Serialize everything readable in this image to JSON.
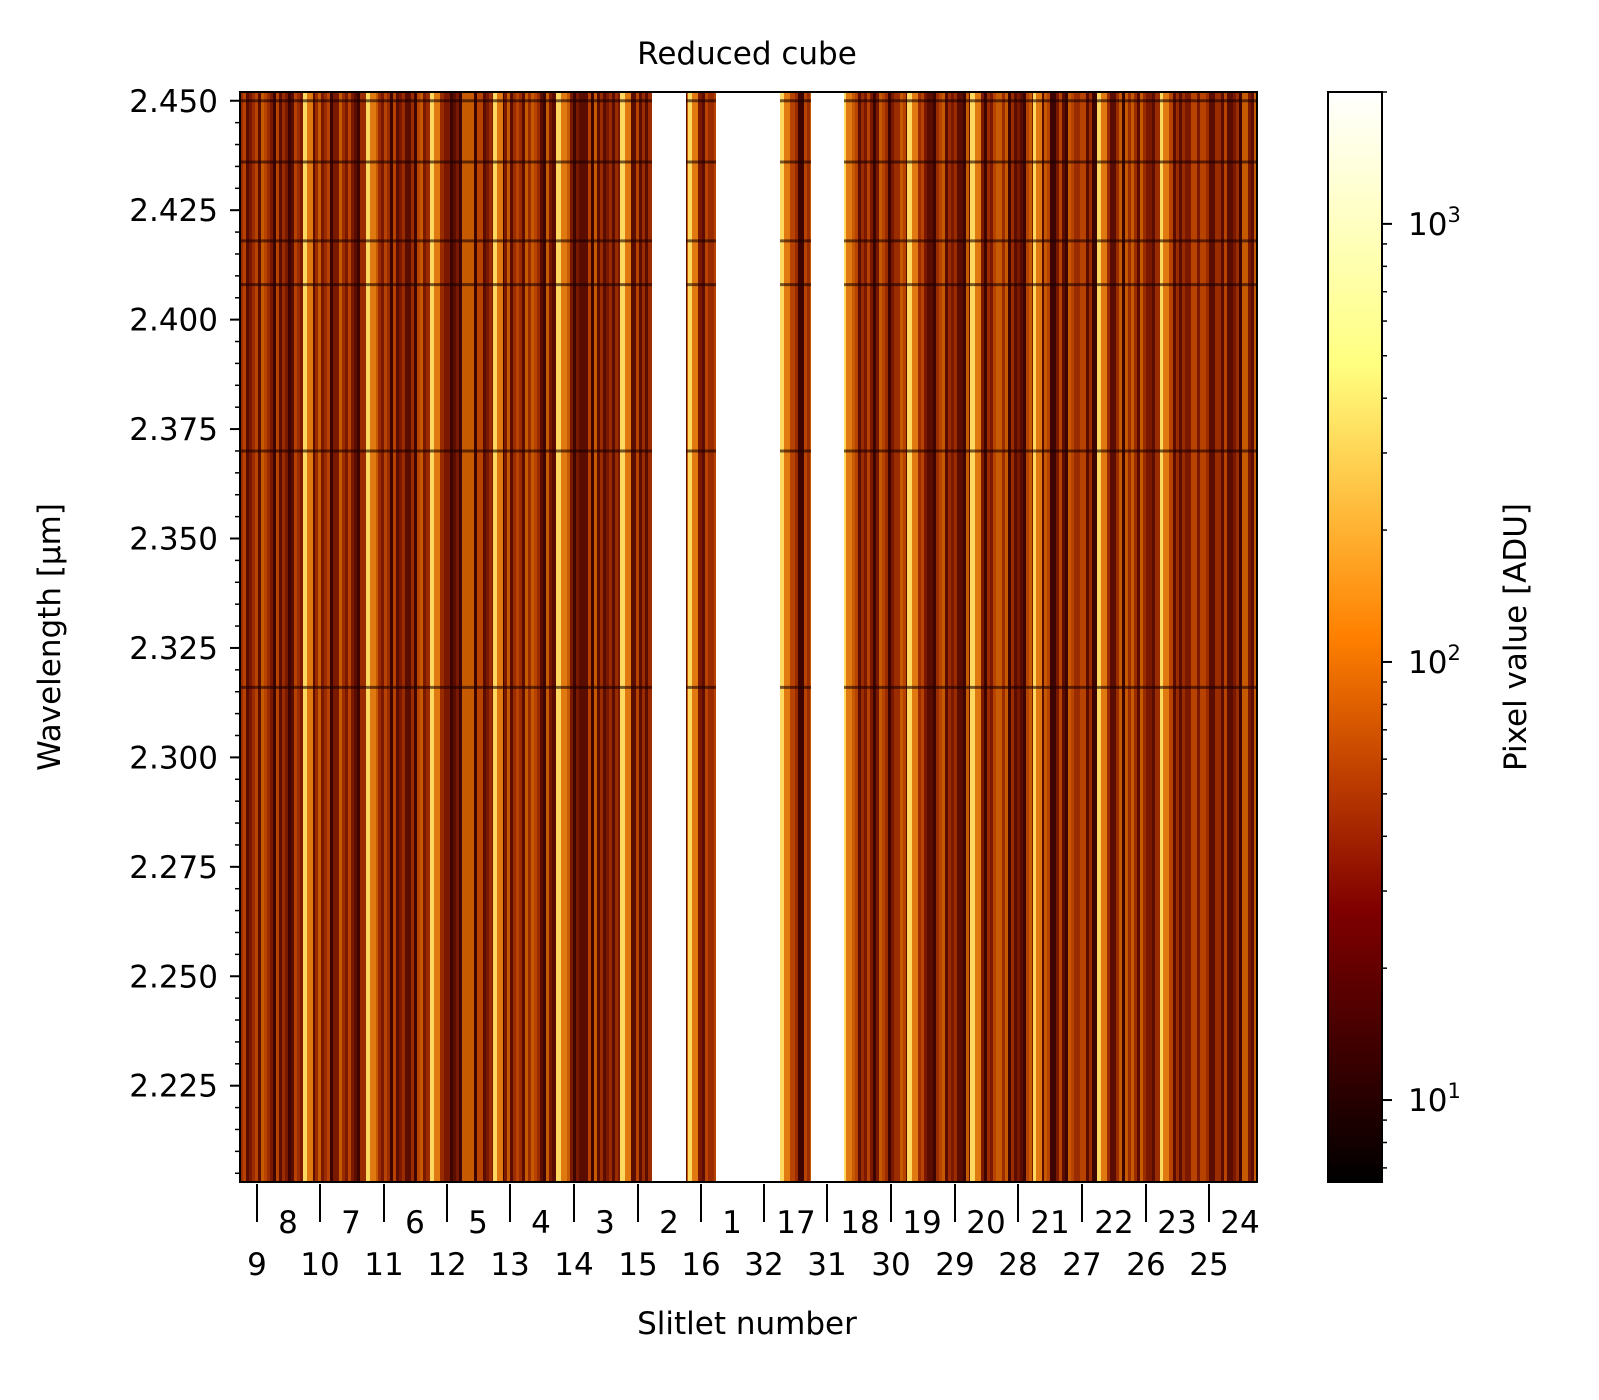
{
  "chart_data": {
    "type": "heatmap",
    "title": "Reduced cube",
    "xlabel": "Slitlet number",
    "ylabel": "Wavelength [μm]",
    "ylim": [
      2.203,
      2.452
    ],
    "y_ticks": [
      "2.225",
      "2.250",
      "2.275",
      "2.300",
      "2.325",
      "2.350",
      "2.375",
      "2.400",
      "2.425",
      "2.450"
    ],
    "y_tick_values": [
      2.225,
      2.25,
      2.275,
      2.3,
      2.325,
      2.35,
      2.375,
      2.4,
      2.425,
      2.45
    ],
    "x_labels_top": [
      "8",
      "7",
      "6",
      "5",
      "4",
      "3",
      "2",
      "1",
      "17",
      "18",
      "19",
      "20",
      "21",
      "22",
      "23",
      "24"
    ],
    "x_labels_bottom": [
      "9",
      "10",
      "11",
      "12",
      "13",
      "14",
      "15",
      "16",
      "32",
      "31",
      "30",
      "29",
      "28",
      "27",
      "26",
      "25"
    ],
    "colorbar": {
      "label": "Pixel value [ADU]",
      "scale": "log",
      "range": [
        6.5,
        2000
      ],
      "ticks": [
        {
          "value": 10,
          "base": "10",
          "exp": "1"
        },
        {
          "value": 100,
          "base": "10",
          "exp": "2"
        },
        {
          "value": 1000,
          "base": "10",
          "exp": "3"
        }
      ],
      "colormap": "afmhot"
    },
    "grid": false,
    "colors": {
      "low": "#000000",
      "mid_dark": "#6a0000",
      "mid": "#e07000",
      "high": "#ffff80",
      "top": "#ffffff"
    }
  }
}
